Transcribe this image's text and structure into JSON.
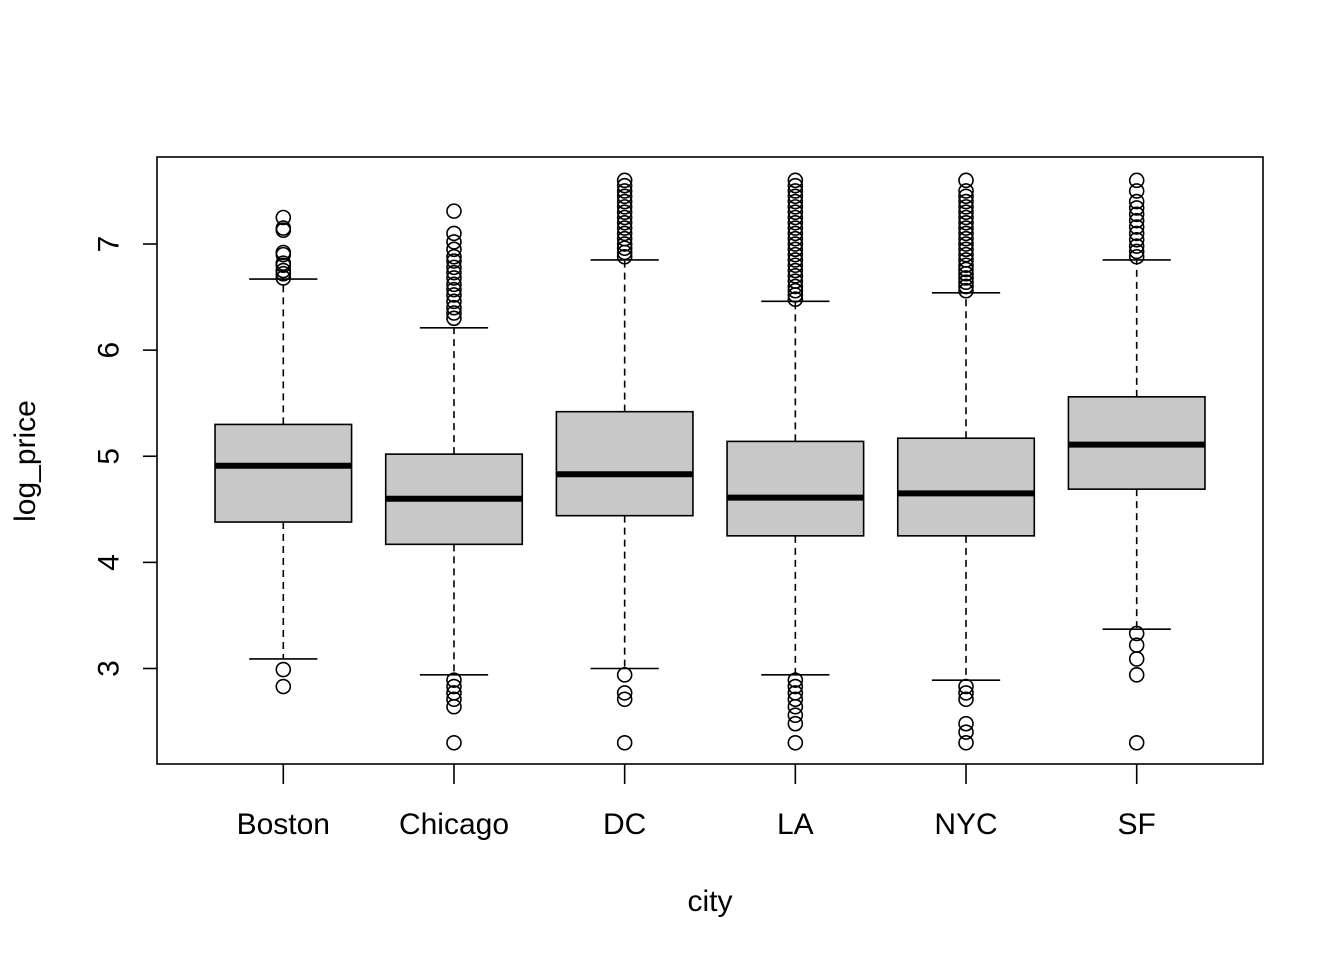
{
  "chart_data": {
    "type": "boxplot",
    "title": "",
    "xlabel": "city",
    "ylabel": "log_price",
    "ylim": [
      2.1,
      7.82
    ],
    "yticks": [
      3,
      4,
      5,
      6,
      7
    ],
    "grid": false,
    "box_fill": "#c8c8c8",
    "categories": [
      "Boston",
      "Chicago",
      "DC",
      "LA",
      "NYC",
      "SF"
    ],
    "boxes": [
      {
        "name": "Boston",
        "whisker_low": 3.09,
        "q1": 4.38,
        "median": 4.91,
        "q3": 5.3,
        "whisker_high": 6.67,
        "outliers": [
          2.83,
          2.99,
          6.68,
          6.72,
          6.75,
          6.8,
          6.82,
          6.9,
          6.92,
          7.13,
          7.15,
          7.25
        ]
      },
      {
        "name": "Chicago",
        "whisker_low": 2.94,
        "q1": 4.17,
        "median": 4.6,
        "q3": 5.02,
        "whisker_high": 6.21,
        "outliers": [
          2.3,
          2.64,
          2.71,
          2.77,
          2.83,
          2.89,
          6.3,
          6.35,
          6.4,
          6.46,
          6.52,
          6.57,
          6.62,
          6.68,
          6.73,
          6.78,
          6.84,
          6.88,
          6.95,
          7.02,
          7.1,
          7.31
        ]
      },
      {
        "name": "DC",
        "whisker_low": 3.0,
        "q1": 4.44,
        "median": 4.83,
        "q3": 5.42,
        "whisker_high": 6.85,
        "outliers": [
          2.3,
          2.71,
          2.77,
          2.94,
          6.88,
          6.92,
          6.96,
          7.0,
          7.05,
          7.1,
          7.15,
          7.2,
          7.25,
          7.3,
          7.35,
          7.4,
          7.45,
          7.5,
          7.55,
          7.6
        ]
      },
      {
        "name": "LA",
        "whisker_low": 2.94,
        "q1": 4.25,
        "median": 4.61,
        "q3": 5.14,
        "whisker_high": 6.46,
        "outliers": [
          2.3,
          2.48,
          2.56,
          2.64,
          2.71,
          2.77,
          2.83,
          2.89,
          6.48,
          6.52,
          6.56,
          6.6,
          6.65,
          6.7,
          6.75,
          6.8,
          6.85,
          6.9,
          6.95,
          7.0,
          7.05,
          7.1,
          7.15,
          7.2,
          7.25,
          7.3,
          7.35,
          7.4,
          7.45,
          7.5,
          7.55,
          7.6
        ]
      },
      {
        "name": "NYC",
        "whisker_low": 2.89,
        "q1": 4.25,
        "median": 4.65,
        "q3": 5.17,
        "whisker_high": 6.54,
        "outliers": [
          2.3,
          2.4,
          2.48,
          2.71,
          2.77,
          2.83,
          6.56,
          6.6,
          6.64,
          6.68,
          6.72,
          6.76,
          6.8,
          6.85,
          6.9,
          6.95,
          7.0,
          7.05,
          7.1,
          7.15,
          7.2,
          7.25,
          7.3,
          7.35,
          7.4,
          7.45,
          7.5,
          7.6
        ]
      },
      {
        "name": "SF",
        "whisker_low": 3.37,
        "q1": 4.69,
        "median": 5.11,
        "q3": 5.56,
        "whisker_high": 6.85,
        "outliers": [
          2.3,
          2.94,
          3.09,
          3.22,
          3.33,
          6.88,
          6.93,
          6.98,
          7.04,
          7.1,
          7.16,
          7.22,
          7.28,
          7.34,
          7.4,
          7.5,
          7.6
        ]
      }
    ]
  }
}
